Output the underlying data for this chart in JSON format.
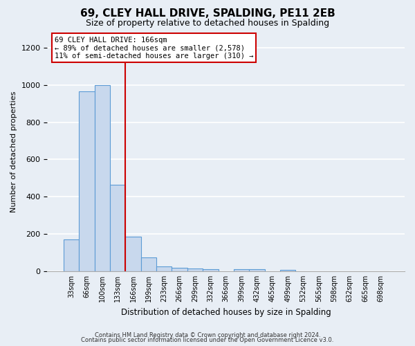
{
  "title": "69, CLEY HALL DRIVE, SPALDING, PE11 2EB",
  "subtitle": "Size of property relative to detached houses in Spalding",
  "xlabel": "Distribution of detached houses by size in Spalding",
  "ylabel": "Number of detached properties",
  "bin_labels": [
    "33sqm",
    "66sqm",
    "100sqm",
    "133sqm",
    "166sqm",
    "199sqm",
    "233sqm",
    "266sqm",
    "299sqm",
    "332sqm",
    "366sqm",
    "399sqm",
    "432sqm",
    "465sqm",
    "499sqm",
    "532sqm",
    "565sqm",
    "598sqm",
    "632sqm",
    "665sqm",
    "698sqm"
  ],
  "bar_values": [
    170,
    965,
    1000,
    465,
    185,
    75,
    25,
    18,
    15,
    12,
    0,
    10,
    10,
    0,
    8,
    0,
    0,
    0,
    0,
    0,
    0
  ],
  "bar_color": "#c8d8ed",
  "bar_edge_color": "#5b9bd5",
  "highlight_line_color": "#cc0000",
  "ylim": [
    0,
    1280
  ],
  "yticks": [
    0,
    200,
    400,
    600,
    800,
    1000,
    1200
  ],
  "annotation_title": "69 CLEY HALL DRIVE: 166sqm",
  "annotation_line1": "← 89% of detached houses are smaller (2,578)",
  "annotation_line2": "11% of semi-detached houses are larger (310) →",
  "annotation_box_color": "#ffffff",
  "annotation_box_edge_color": "#cc0000",
  "footnote1": "Contains HM Land Registry data © Crown copyright and database right 2024.",
  "footnote2": "Contains public sector information licensed under the Open Government Licence v3.0.",
  "background_color": "#e8eef5",
  "grid_color": "#ffffff",
  "title_fontsize": 11,
  "subtitle_fontsize": 9,
  "highlight_bar_index": 4
}
